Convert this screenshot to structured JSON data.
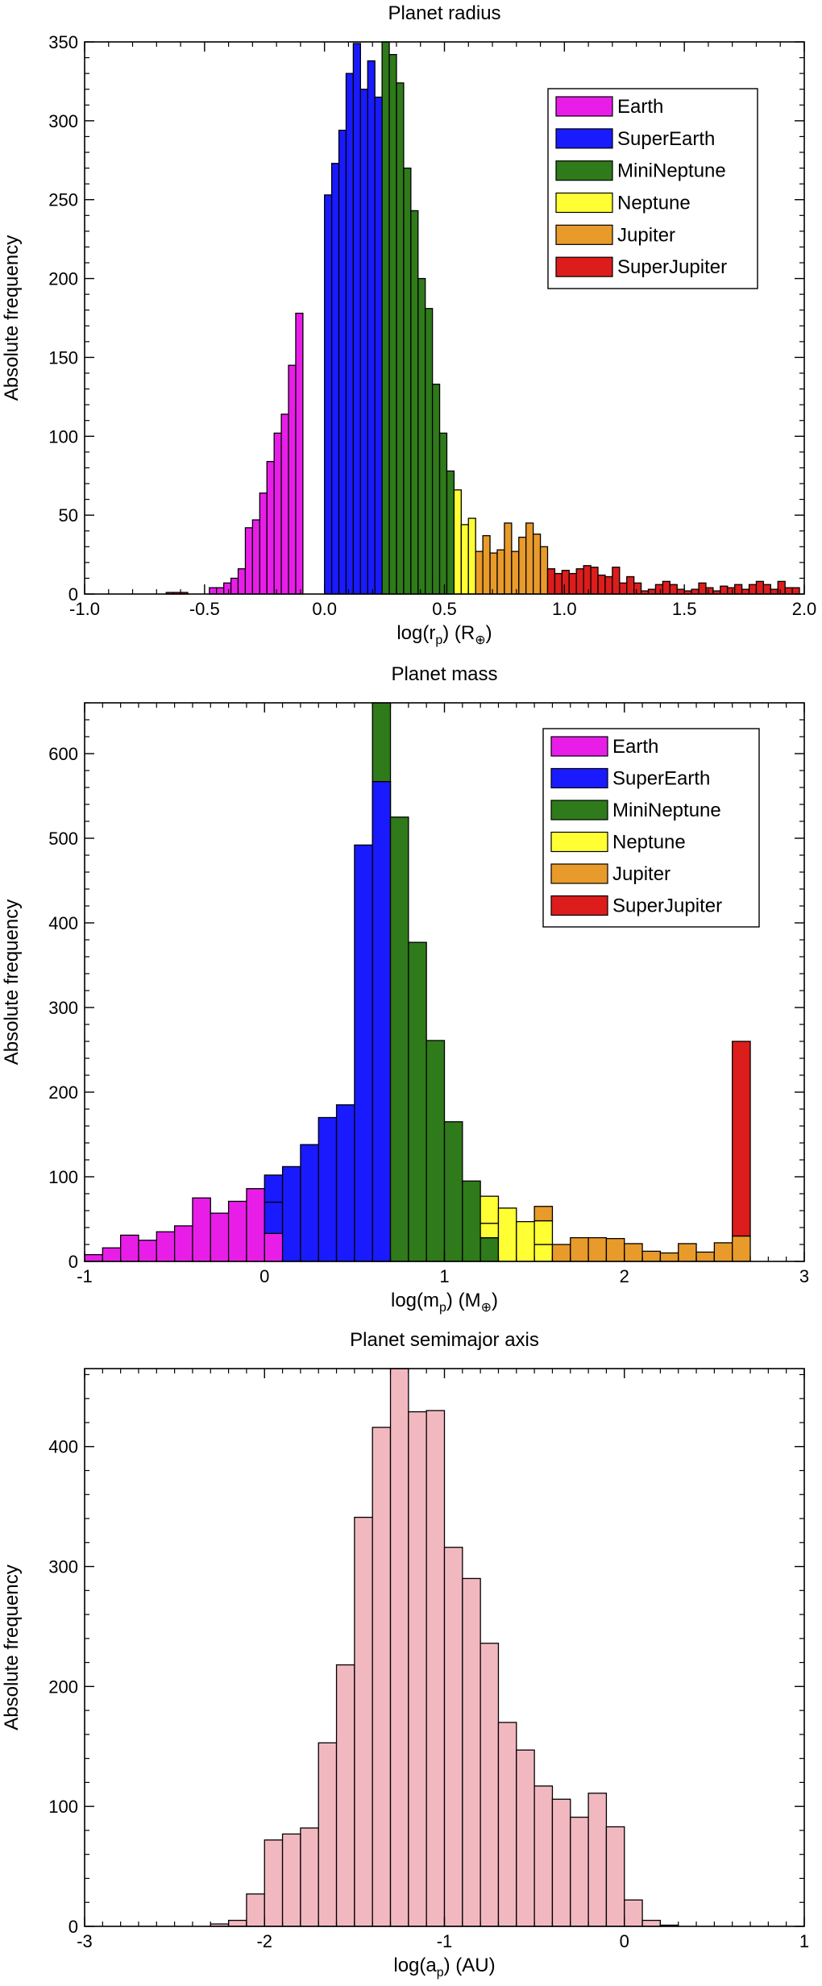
{
  "chart_data": [
    {
      "type": "bar",
      "title": "Planet radius",
      "xlabel_main": "log(r",
      "xlabel_sub": "p",
      "xlabel_tail": ") (R",
      "xlabel_sub2": "⊕",
      "xlabel_end": ")",
      "ylabel": "Absolute frequency",
      "xlim": [
        -1.0,
        2.0
      ],
      "ylim": [
        0,
        350
      ],
      "xticks": [
        -1.0,
        -0.5,
        0.0,
        0.5,
        1.0,
        1.5,
        2.0
      ],
      "xtick_labels": [
        "-1.0",
        "-0.5",
        "0.0",
        "0.5",
        "1.0",
        "1.5",
        "2.0"
      ],
      "yticks": [
        0,
        50,
        100,
        150,
        200,
        250,
        300,
        350
      ],
      "ytick_labels": [
        "0",
        "50",
        "100",
        "150",
        "200",
        "250",
        "300",
        "350"
      ],
      "legend": [
        {
          "name": "Earth",
          "color": "#e81ee8"
        },
        {
          "name": "SuperEarth",
          "color": "#1a1aff"
        },
        {
          "name": "MiniNeptune",
          "color": "#2f7a1a"
        },
        {
          "name": "Neptune",
          "color": "#ffff33"
        },
        {
          "name": "Jupiter",
          "color": "#e89a2a"
        },
        {
          "name": "SuperJupiter",
          "color": "#dd1c1c"
        }
      ],
      "legend_position": "top-right",
      "bin_width": 0.03,
      "bars": [
        {
          "x": -0.645,
          "v": 1,
          "c": 5
        },
        {
          "x": -0.615,
          "v": 1,
          "c": 5
        },
        {
          "x": -0.585,
          "v": 1,
          "c": 5
        },
        {
          "x": -0.465,
          "v": 4,
          "c": 0
        },
        {
          "x": -0.435,
          "v": 4,
          "c": 0
        },
        {
          "x": -0.405,
          "v": 7,
          "c": 0
        },
        {
          "x": -0.375,
          "v": 10,
          "c": 0
        },
        {
          "x": -0.345,
          "v": 16,
          "c": 0
        },
        {
          "x": -0.315,
          "v": 42,
          "c": 0
        },
        {
          "x": -0.285,
          "v": 47,
          "c": 0
        },
        {
          "x": -0.255,
          "v": 64,
          "c": 0
        },
        {
          "x": -0.225,
          "v": 84,
          "c": 0
        },
        {
          "x": -0.195,
          "v": 102,
          "c": 0
        },
        {
          "x": -0.165,
          "v": 114,
          "c": 0
        },
        {
          "x": -0.135,
          "v": 145,
          "c": 0
        },
        {
          "x": -0.105,
          "v": 178,
          "c": 0
        },
        {
          "x": 0.015,
          "v": 253,
          "c": 1
        },
        {
          "x": 0.045,
          "v": 273,
          "c": 1
        },
        {
          "x": 0.075,
          "v": 294,
          "c": 1
        },
        {
          "x": 0.105,
          "v": 330,
          "c": 1
        },
        {
          "x": 0.135,
          "v": 349,
          "c": 1
        },
        {
          "x": 0.165,
          "v": 320,
          "c": 1
        },
        {
          "x": 0.195,
          "v": 338,
          "c": 1
        },
        {
          "x": 0.225,
          "v": 315,
          "c": 1
        },
        {
          "x": 0.255,
          "v": 350,
          "c": 2
        },
        {
          "x": 0.285,
          "v": 342,
          "c": 2
        },
        {
          "x": 0.315,
          "v": 324,
          "c": 2
        },
        {
          "x": 0.345,
          "v": 270,
          "c": 2
        },
        {
          "x": 0.375,
          "v": 243,
          "c": 2
        },
        {
          "x": 0.405,
          "v": 200,
          "c": 2
        },
        {
          "x": 0.435,
          "v": 181,
          "c": 2
        },
        {
          "x": 0.465,
          "v": 133,
          "c": 2
        },
        {
          "x": 0.495,
          "v": 102,
          "c": 2
        },
        {
          "x": 0.525,
          "v": 78,
          "c": 2
        },
        {
          "x": 0.555,
          "v": 66,
          "c": 3
        },
        {
          "x": 0.585,
          "v": 44,
          "c": 3
        },
        {
          "x": 0.615,
          "v": 48,
          "c": 3
        },
        {
          "x": 0.645,
          "v": 27,
          "c": 4
        },
        {
          "x": 0.675,
          "v": 37,
          "c": 4
        },
        {
          "x": 0.705,
          "v": 26,
          "c": 4
        },
        {
          "x": 0.735,
          "v": 28,
          "c": 4
        },
        {
          "x": 0.765,
          "v": 45,
          "c": 4
        },
        {
          "x": 0.795,
          "v": 27,
          "c": 4
        },
        {
          "x": 0.825,
          "v": 36,
          "c": 4
        },
        {
          "x": 0.855,
          "v": 45,
          "c": 4
        },
        {
          "x": 0.885,
          "v": 38,
          "c": 4
        },
        {
          "x": 0.915,
          "v": 30,
          "c": 4
        },
        {
          "x": 0.945,
          "v": 16,
          "c": 5
        },
        {
          "x": 0.975,
          "v": 13,
          "c": 5
        },
        {
          "x": 1.005,
          "v": 15,
          "c": 5
        },
        {
          "x": 1.035,
          "v": 13,
          "c": 5
        },
        {
          "x": 1.065,
          "v": 16,
          "c": 5
        },
        {
          "x": 1.095,
          "v": 18,
          "c": 5
        },
        {
          "x": 1.125,
          "v": 17,
          "c": 5
        },
        {
          "x": 1.155,
          "v": 12,
          "c": 5
        },
        {
          "x": 1.185,
          "v": 11,
          "c": 5
        },
        {
          "x": 1.215,
          "v": 17,
          "c": 5
        },
        {
          "x": 1.245,
          "v": 7,
          "c": 5
        },
        {
          "x": 1.275,
          "v": 11,
          "c": 5
        },
        {
          "x": 1.305,
          "v": 7,
          "c": 5
        },
        {
          "x": 1.335,
          "v": 2,
          "c": 5
        },
        {
          "x": 1.365,
          "v": 3,
          "c": 5
        },
        {
          "x": 1.395,
          "v": 6,
          "c": 5
        },
        {
          "x": 1.425,
          "v": 8,
          "c": 5
        },
        {
          "x": 1.455,
          "v": 6,
          "c": 5
        },
        {
          "x": 1.485,
          "v": 3,
          "c": 5
        },
        {
          "x": 1.515,
          "v": 2,
          "c": 5
        },
        {
          "x": 1.545,
          "v": 3,
          "c": 5
        },
        {
          "x": 1.575,
          "v": 7,
          "c": 5
        },
        {
          "x": 1.605,
          "v": 4,
          "c": 5
        },
        {
          "x": 1.635,
          "v": 2,
          "c": 5
        },
        {
          "x": 1.665,
          "v": 5,
          "c": 5
        },
        {
          "x": 1.695,
          "v": 4,
          "c": 5
        },
        {
          "x": 1.725,
          "v": 6,
          "c": 5
        },
        {
          "x": 1.755,
          "v": 3,
          "c": 5
        },
        {
          "x": 1.785,
          "v": 6,
          "c": 5
        },
        {
          "x": 1.815,
          "v": 8,
          "c": 5
        },
        {
          "x": 1.845,
          "v": 6,
          "c": 5
        },
        {
          "x": 1.875,
          "v": 3,
          "c": 5
        },
        {
          "x": 1.905,
          "v": 8,
          "c": 5
        },
        {
          "x": 1.935,
          "v": 4,
          "c": 5
        },
        {
          "x": 1.965,
          "v": 4,
          "c": 5
        }
      ]
    },
    {
      "type": "bar",
      "title": "Planet mass",
      "xlabel_main": "log(m",
      "xlabel_sub": "p",
      "xlabel_tail": ") (M",
      "xlabel_sub2": "⊕",
      "xlabel_end": ")",
      "ylabel": "Absolute frequency",
      "xlim": [
        -1,
        3
      ],
      "ylim": [
        0,
        660
      ],
      "xticks": [
        -1,
        0,
        1,
        2,
        3
      ],
      "xtick_labels": [
        "-1",
        "0",
        "1",
        "2",
        "3"
      ],
      "yticks": [
        0,
        100,
        200,
        300,
        400,
        500,
        600
      ],
      "ytick_labels": [
        "0",
        "100",
        "200",
        "300",
        "400",
        "500",
        "600"
      ],
      "legend": [
        {
          "name": "Earth",
          "color": "#e81ee8"
        },
        {
          "name": "SuperEarth",
          "color": "#1a1aff"
        },
        {
          "name": "MiniNeptune",
          "color": "#2f7a1a"
        },
        {
          "name": "Neptune",
          "color": "#ffff33"
        },
        {
          "name": "Jupiter",
          "color": "#e89a2a"
        },
        {
          "name": "SuperJupiter",
          "color": "#dd1c1c"
        }
      ],
      "legend_position": "top-right",
      "bin_width": 0.1,
      "bars": [
        {
          "x": -0.95,
          "segs": [
            {
              "c": 0,
              "v": 8
            }
          ]
        },
        {
          "x": -0.85,
          "segs": [
            {
              "c": 0,
              "v": 16
            }
          ]
        },
        {
          "x": -0.75,
          "segs": [
            {
              "c": 0,
              "v": 31
            }
          ]
        },
        {
          "x": -0.65,
          "segs": [
            {
              "c": 0,
              "v": 25
            }
          ]
        },
        {
          "x": -0.55,
          "segs": [
            {
              "c": 0,
              "v": 35
            }
          ]
        },
        {
          "x": -0.45,
          "segs": [
            {
              "c": 0,
              "v": 42
            }
          ]
        },
        {
          "x": -0.35,
          "segs": [
            {
              "c": 0,
              "v": 75
            }
          ]
        },
        {
          "x": -0.25,
          "segs": [
            {
              "c": 0,
              "v": 57
            }
          ]
        },
        {
          "x": -0.15,
          "segs": [
            {
              "c": 0,
              "v": 71
            }
          ]
        },
        {
          "x": -0.05,
          "segs": [
            {
              "c": 0,
              "v": 86
            }
          ]
        },
        {
          "x": 0.05,
          "segs": [
            {
              "c": 0,
              "v": 33
            },
            {
              "c": 1,
              "v": 37
            },
            {
              "c": 1,
              "v": 32
            }
          ]
        },
        {
          "x": 0.15,
          "segs": [
            {
              "c": 1,
              "v": 112
            }
          ]
        },
        {
          "x": 0.25,
          "segs": [
            {
              "c": 1,
              "v": 138
            }
          ]
        },
        {
          "x": 0.35,
          "segs": [
            {
              "c": 1,
              "v": 170
            }
          ]
        },
        {
          "x": 0.45,
          "segs": [
            {
              "c": 1,
              "v": 185
            }
          ]
        },
        {
          "x": 0.55,
          "segs": [
            {
              "c": 1,
              "v": 492
            }
          ]
        },
        {
          "x": 0.65,
          "segs": [
            {
              "c": 1,
              "v": 93
            },
            {
              "c": 1,
              "v": 474
            }
          ]
        },
        {
          "x": 0.65,
          "segs": [
            {
              "c": 1,
              "v": 567
            },
            {
              "c": 2,
              "v": 93
            }
          ]
        },
        {
          "x": 0.75,
          "segs": [
            {
              "c": 2,
              "v": 525
            }
          ]
        },
        {
          "x": 0.85,
          "segs": [
            {
              "c": 2,
              "v": 377
            }
          ]
        },
        {
          "x": 0.95,
          "segs": [
            {
              "c": 2,
              "v": 261
            }
          ]
        },
        {
          "x": 1.05,
          "segs": [
            {
              "c": 2,
              "v": 165
            }
          ]
        },
        {
          "x": 1.15,
          "segs": [
            {
              "c": 2,
              "v": 95
            }
          ]
        },
        {
          "x": 1.25,
          "segs": [
            {
              "c": 2,
              "v": 28
            },
            {
              "c": 3,
              "v": 17
            },
            {
              "c": 3,
              "v": 32
            }
          ]
        },
        {
          "x": 1.35,
          "segs": [
            {
              "c": 3,
              "v": 63
            }
          ]
        },
        {
          "x": 1.45,
          "segs": [
            {
              "c": 3,
              "v": 47
            }
          ]
        },
        {
          "x": 1.55,
          "segs": [
            {
              "c": 3,
              "v": 20
            },
            {
              "c": 3,
              "v": 28
            },
            {
              "c": 4,
              "v": 17
            }
          ]
        },
        {
          "x": 1.65,
          "segs": [
            {
              "c": 4,
              "v": 20
            }
          ]
        },
        {
          "x": 1.75,
          "segs": [
            {
              "c": 4,
              "v": 28
            }
          ]
        },
        {
          "x": 1.85,
          "segs": [
            {
              "c": 4,
              "v": 28
            }
          ]
        },
        {
          "x": 1.95,
          "segs": [
            {
              "c": 4,
              "v": 27
            }
          ]
        },
        {
          "x": 2.05,
          "segs": [
            {
              "c": 4,
              "v": 21
            }
          ]
        },
        {
          "x": 2.15,
          "segs": [
            {
              "c": 4,
              "v": 12
            }
          ]
        },
        {
          "x": 2.25,
          "segs": [
            {
              "c": 4,
              "v": 10
            }
          ]
        },
        {
          "x": 2.35,
          "segs": [
            {
              "c": 4,
              "v": 21
            }
          ]
        },
        {
          "x": 2.45,
          "segs": [
            {
              "c": 4,
              "v": 11
            }
          ]
        },
        {
          "x": 2.55,
          "segs": [
            {
              "c": 4,
              "v": 22
            }
          ]
        },
        {
          "x": 2.65,
          "segs": [
            {
              "c": 4,
              "v": 30
            },
            {
              "c": 5,
              "v": 230
            }
          ]
        }
      ]
    },
    {
      "type": "bar",
      "title": "Planet semimajor axis",
      "xlabel_main": "log(a",
      "xlabel_sub": "p",
      "xlabel_tail": ") (AU)",
      "xlabel_sub2": "",
      "xlabel_end": "",
      "ylabel": "Absolute frequency",
      "xlim": [
        -3,
        1
      ],
      "ylim": [
        0,
        465
      ],
      "xticks": [
        -3,
        -2,
        -1,
        0,
        1
      ],
      "xtick_labels": [
        "-3",
        "-2",
        "-1",
        "0",
        "1"
      ],
      "yticks": [
        0,
        100,
        200,
        300,
        400
      ],
      "ytick_labels": [
        "0",
        "100",
        "200",
        "300",
        "400"
      ],
      "bar_color": "#f2b8c0",
      "bin_width": 0.1,
      "x": [
        -2.25,
        -2.15,
        -2.05,
        -1.95,
        -1.85,
        -1.75,
        -1.65,
        -1.55,
        -1.45,
        -1.35,
        -1.25,
        -1.15,
        -1.05,
        -0.95,
        -0.85,
        -0.75,
        -0.65,
        -0.55,
        -0.45,
        -0.35,
        -0.25,
        -0.15,
        -0.05,
        0.05,
        0.15,
        0.25
      ],
      "values": [
        2,
        5,
        27,
        72,
        77,
        82,
        153,
        218,
        341,
        416,
        465,
        429,
        430,
        316,
        290,
        236,
        170,
        147,
        117,
        106,
        91,
        111,
        83,
        22,
        5,
        1
      ]
    }
  ]
}
